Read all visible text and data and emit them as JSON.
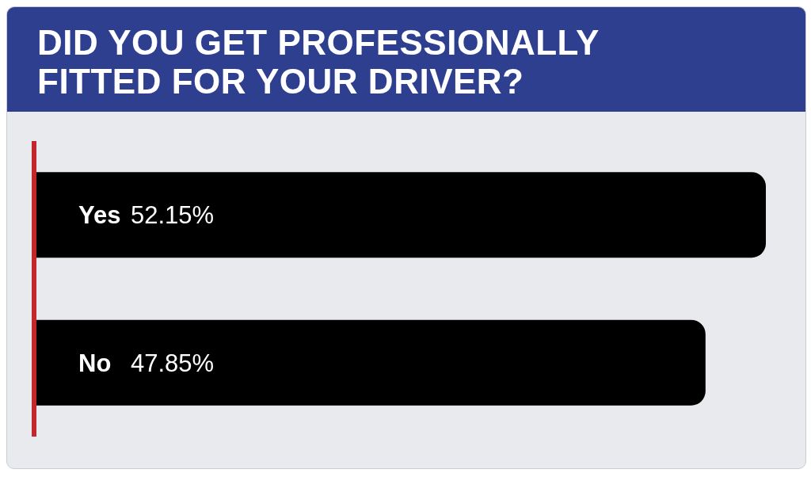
{
  "chart_data": {
    "type": "bar",
    "orientation": "horizontal",
    "title": "DID YOU GET PROFESSIONALLY FITTED FOR YOUR DRIVER?",
    "categories": [
      "Yes",
      "No"
    ],
    "values": [
      52.15,
      47.85
    ],
    "color": "#000000",
    "value_labels": [
      "52.15%",
      "47.85%"
    ]
  }
}
